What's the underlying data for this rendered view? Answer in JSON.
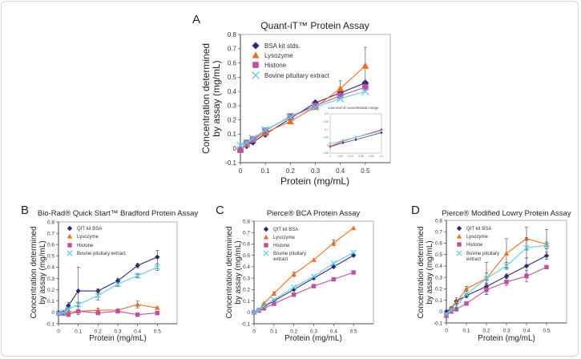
{
  "colors": {
    "bsa": "#2b2a7a",
    "lysozyme": "#f26d21",
    "histone": "#c0509f",
    "bovine": "#5fcde0"
  },
  "chart_data": [
    {
      "panel": "A",
      "type": "line",
      "title": "Quant-iT™ Protein Assay",
      "xlabel": "Protein (mg/mL)",
      "ylabel": [
        "Concentration determined",
        "by assay (mg/mL)"
      ],
      "xlim": [
        0,
        0.6
      ],
      "ylim": [
        -0.1,
        0.8
      ],
      "xticks": [
        0,
        0.1,
        0.2,
        0.3,
        0.4,
        0.5
      ],
      "yticks": [
        -0.1,
        0,
        0.1,
        0.2,
        0.3,
        0.4,
        0.5,
        0.6,
        0.7,
        0.8
      ],
      "legend": "top-left",
      "x": [
        0,
        0.025,
        0.05,
        0.1,
        0.2,
        0.3,
        0.4,
        0.5
      ],
      "series": [
        {
          "name": "BSA kit stds.",
          "marker": "diamond",
          "color_key": "bsa",
          "values": [
            0,
            0.02,
            0.045,
            0.1,
            0.21,
            0.32,
            0.39,
            0.46
          ]
        },
        {
          "name": "Lysozyme",
          "marker": "triangle",
          "color_key": "lysozyme",
          "values": [
            -0.01,
            0.03,
            0.06,
            0.11,
            0.19,
            0.29,
            0.42,
            0.58
          ],
          "yerr": [
            0,
            0,
            0,
            0,
            0,
            0,
            0.055,
            0.13
          ]
        },
        {
          "name": "Histone",
          "marker": "square",
          "color_key": "histone",
          "values": [
            -0.01,
            0.04,
            0.065,
            0.125,
            0.225,
            0.3,
            0.37,
            0.43
          ]
        },
        {
          "name": "Bovine pituitary extract",
          "marker": "x",
          "color_key": "bovine",
          "values": [
            0.02,
            0.04,
            0.07,
            0.13,
            0.22,
            0.29,
            0.35,
            0.4
          ]
        }
      ],
      "inset": {
        "title": "Low end of concentration range",
        "xlim": [
          0,
          0.1
        ],
        "ylim": [
          -0.05,
          0.2
        ],
        "xticks": [
          0,
          0.02,
          0.04,
          0.06,
          0.08,
          0.1
        ],
        "yticks": [
          -0.05,
          0,
          0.05,
          0.1,
          0.15,
          0.2
        ],
        "x": [
          0,
          0.025,
          0.05,
          0.1
        ],
        "series": [
          {
            "color_key": "bsa",
            "values": [
              -0.01,
              0.015,
              0.035,
              0.08
            ]
          },
          {
            "color_key": "lysozyme",
            "values": [
              -0.005,
              0.03,
              0.05,
              0.095
            ]
          },
          {
            "color_key": "histone",
            "values": [
              -0.01,
              0.025,
              0.05,
              0.1
            ]
          },
          {
            "color_key": "bovine",
            "values": [
              0.01,
              0.03,
              0.05,
              0.09
            ]
          }
        ]
      }
    },
    {
      "panel": "B",
      "type": "line",
      "title": "Bio-Rad® Quick Start™ Bradford Protein Assay",
      "xlabel": "Protein (mg/mL)",
      "ylabel": [
        "Concentration determined",
        "by assay (mg/mL)"
      ],
      "xlim": [
        0,
        0.6
      ],
      "ylim": [
        -0.1,
        0.8
      ],
      "xticks": [
        0,
        0.1,
        0.2,
        0.3,
        0.4,
        0.5
      ],
      "yticks": [
        -0.1,
        0,
        0.1,
        0.2,
        0.3,
        0.4,
        0.5,
        0.6,
        0.7,
        0.8
      ],
      "legend": "top-left",
      "x": [
        0,
        0.025,
        0.05,
        0.1,
        0.2,
        0.3,
        0.4,
        0.5
      ],
      "series": [
        {
          "name": "QIT kit BSA",
          "marker": "diamond",
          "color_key": "bsa",
          "values": [
            0,
            0,
            0.06,
            0.19,
            0.19,
            0.28,
            0.415,
            0.49
          ],
          "yerr": [
            0.01,
            0.01,
            0.03,
            0.21,
            0.02,
            0.02,
            0.02,
            0.06
          ]
        },
        {
          "name": "Lysozyme",
          "marker": "triangle",
          "color_key": "lysozyme",
          "values": [
            -0.01,
            -0.01,
            0,
            0.01,
            0.02,
            0.02,
            0.07,
            0.04
          ],
          "yerr": [
            0,
            0,
            0,
            0.01,
            0.02,
            0.01,
            0.03,
            0.01
          ]
        },
        {
          "name": "Histone",
          "marker": "square",
          "color_key": "histone",
          "values": [
            -0.01,
            -0.01,
            -0.02,
            0.01,
            -0.005,
            0.01,
            -0.02,
            -0.005
          ]
        },
        {
          "name": "Bovine pituitary extract",
          "marker": "x",
          "color_key": "bovine",
          "values": [
            -0.01,
            0,
            0.03,
            0.07,
            0.15,
            0.25,
            0.325,
            0.4
          ],
          "yerr": [
            0,
            0,
            0.02,
            0.02,
            0.04,
            0.02,
            0.02,
            0.03
          ]
        }
      ]
    },
    {
      "panel": "C",
      "type": "line",
      "title": "Pierce® BCA Protein Assay",
      "xlabel": "Protein (mg/mL)",
      "ylabel": [
        "Concentration determined",
        "by assay (mg/mL)"
      ],
      "xlim": [
        0,
        0.6
      ],
      "ylim": [
        -0.1,
        0.8
      ],
      "xticks": [
        0,
        0.1,
        0.2,
        0.3,
        0.4,
        0.5
      ],
      "yticks": [
        -0.1,
        0,
        0.1,
        0.2,
        0.3,
        0.4,
        0.5,
        0.6,
        0.7,
        0.8
      ],
      "legend": "top-left",
      "x": [
        0,
        0.025,
        0.05,
        0.1,
        0.2,
        0.3,
        0.4,
        0.5
      ],
      "series": [
        {
          "name": "QIT kit BSA",
          "marker": "diamond",
          "color_key": "bsa",
          "values": [
            0,
            0.02,
            0.05,
            0.1,
            0.2,
            0.3,
            0.4,
            0.5
          ]
        },
        {
          "name": "Lysozyme",
          "marker": "triangle",
          "color_key": "lysozyme",
          "values": [
            0,
            0.02,
            0.08,
            0.165,
            0.335,
            0.46,
            0.61,
            0.74
          ],
          "yerr": [
            0,
            0,
            0,
            0.015,
            0.02,
            0,
            0.025,
            0
          ]
        },
        {
          "name": "Histone",
          "marker": "square",
          "color_key": "histone",
          "values": [
            0,
            0.015,
            0.035,
            0.075,
            0.155,
            0.23,
            0.29,
            0.35
          ]
        },
        {
          "name": "Bovine pituitary extract",
          "marker": "x",
          "color_key": "bovine",
          "values": [
            0,
            0.02,
            0.055,
            0.11,
            0.22,
            0.315,
            0.43,
            0.525
          ]
        }
      ]
    },
    {
      "panel": "D",
      "type": "line",
      "title": "Pierce® Modified Lowry Protein Assay",
      "xlabel": "Protein (mg/mL)",
      "ylabel": [
        "Concentration determined",
        "by assay (mg/mL)"
      ],
      "xlim": [
        0,
        0.6
      ],
      "ylim": [
        -0.1,
        0.8
      ],
      "xticks": [
        0,
        0.1,
        0.2,
        0.3,
        0.4,
        0.5
      ],
      "yticks": [
        -0.1,
        0,
        0.1,
        0.2,
        0.3,
        0.4,
        0.5,
        0.6,
        0.7,
        0.8
      ],
      "legend": "top-left",
      "x": [
        0,
        0.025,
        0.05,
        0.1,
        0.2,
        0.3,
        0.4,
        0.5
      ],
      "series": [
        {
          "name": "QIT kit BSA",
          "marker": "diamond",
          "color_key": "bsa",
          "values": [
            0,
            0.03,
            0.09,
            0.14,
            0.22,
            0.31,
            0.4,
            0.49
          ],
          "yerr": [
            0,
            0.01,
            0.03,
            0.02,
            0.03,
            0.02,
            0.07,
            0.03
          ]
        },
        {
          "name": "Lysozyme",
          "marker": "triangle",
          "color_key": "lysozyme",
          "values": [
            -0.04,
            0.03,
            0.08,
            0.2,
            0.29,
            0.51,
            0.64,
            0.59
          ],
          "yerr": [
            0,
            0.01,
            0.02,
            0.02,
            0.14,
            0.13,
            0.1,
            0.13
          ]
        },
        {
          "name": "Histone",
          "marker": "square",
          "color_key": "histone",
          "values": [
            -0.03,
            0,
            0.02,
            0.07,
            0.19,
            0.26,
            0.31,
            0.39
          ],
          "yerr": [
            0,
            0,
            0,
            0,
            0.04,
            0.03,
            0.05,
            0
          ]
        },
        {
          "name": "Bovine pituitary extract",
          "marker": "x",
          "color_key": "bovine",
          "values": [
            -0.02,
            0.01,
            0.05,
            0.15,
            0.29,
            0.4,
            0.56,
            0.58
          ],
          "yerr": [
            0,
            0,
            0.02,
            0.03,
            0.05,
            0.03,
            0.09,
            0.03
          ]
        }
      ]
    }
  ]
}
